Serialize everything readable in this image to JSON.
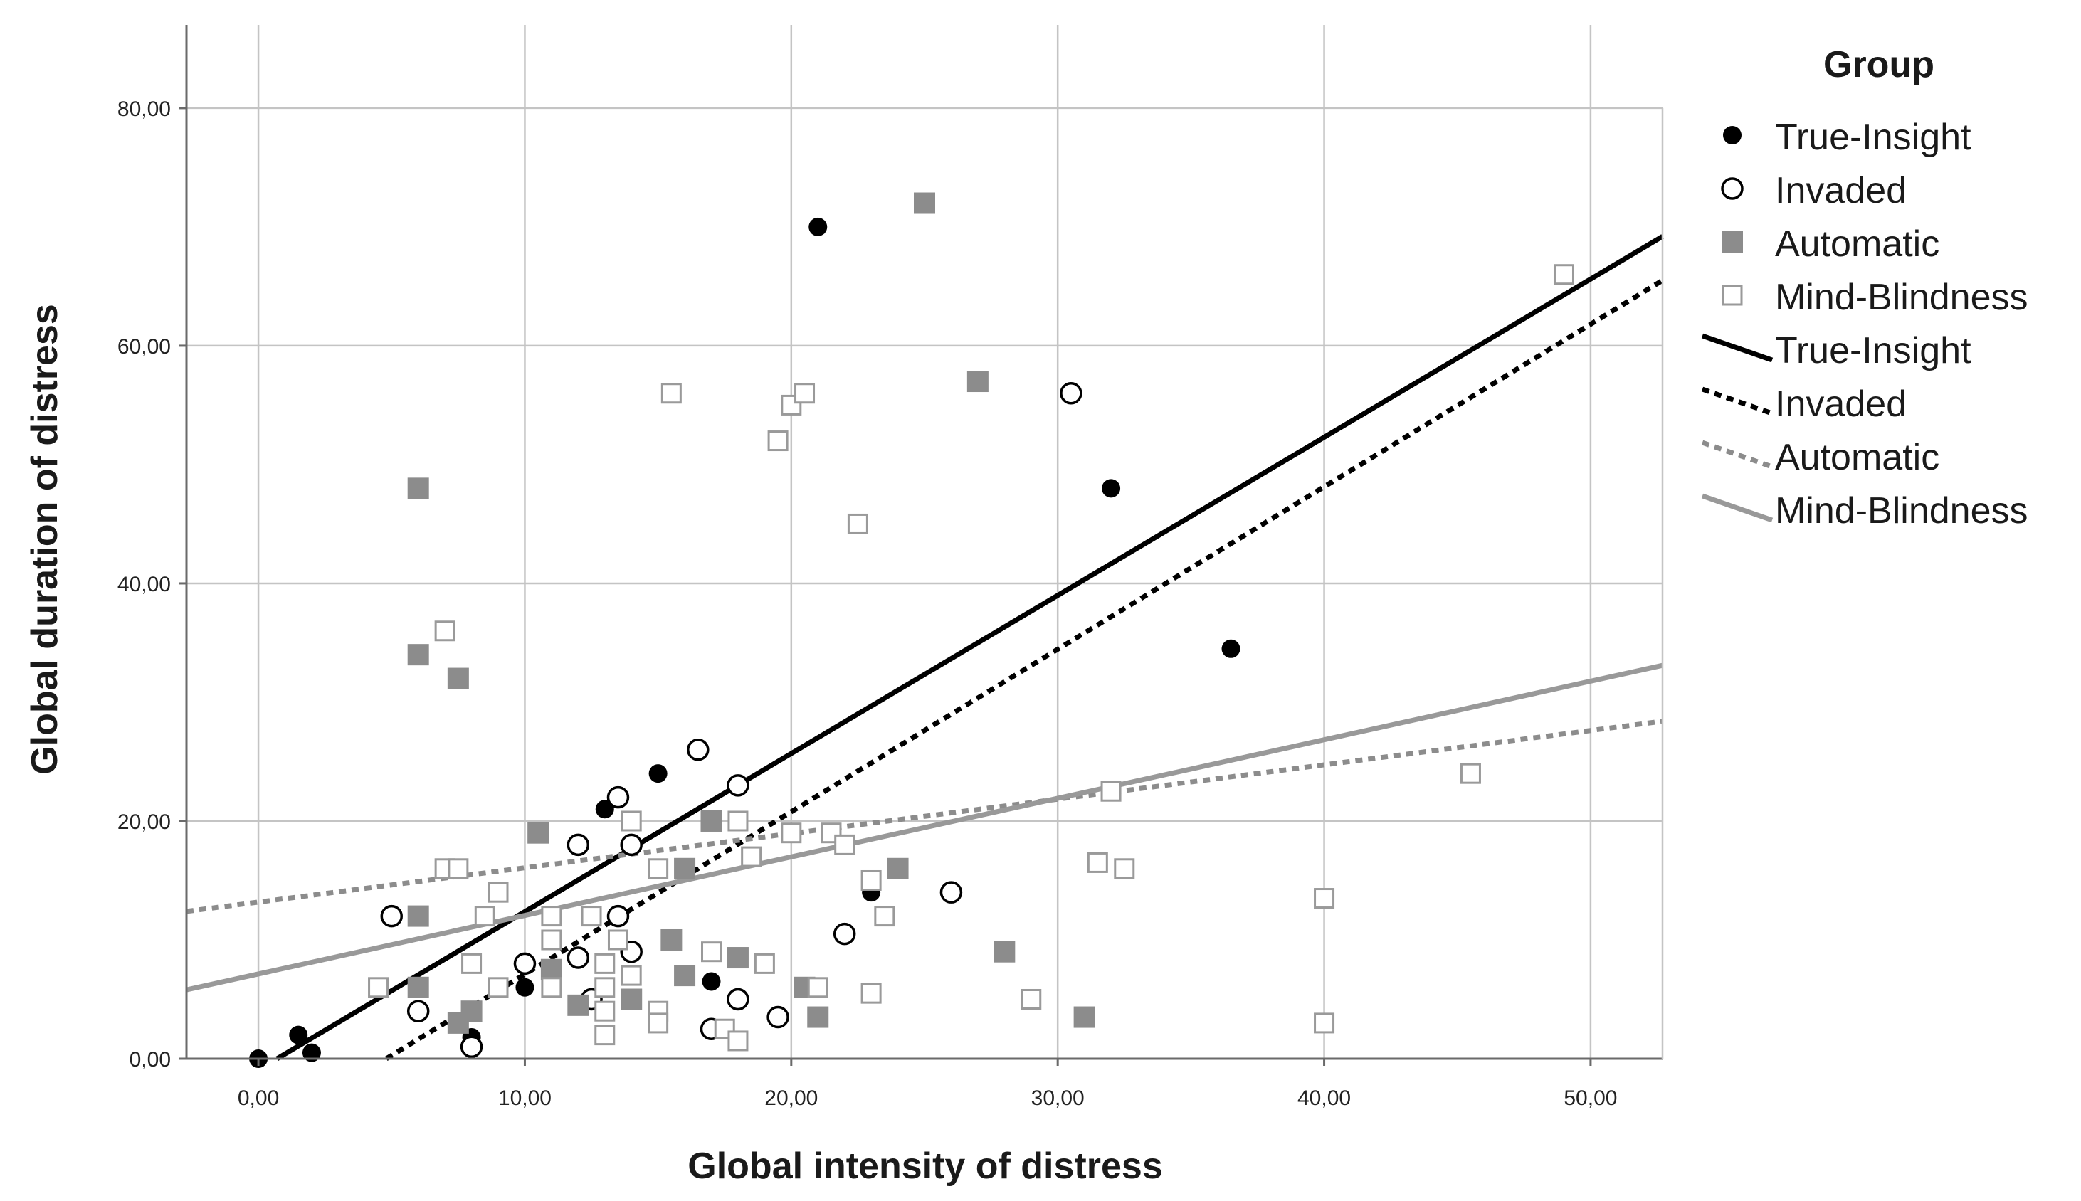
{
  "chart_data": {
    "type": "scatter",
    "xlabel": "Global intensity of distress",
    "ylabel": "Global duration of distress",
    "xlim": [
      -2.7,
      52.7
    ],
    "ylim": [
      0,
      87
    ],
    "x_ticks": [
      0,
      10,
      20,
      30,
      40,
      50
    ],
    "x_tick_labels": [
      "0,00",
      "10,00",
      "20,00",
      "30,00",
      "40,00",
      "50,00"
    ],
    "y_ticks": [
      0,
      20,
      40,
      60,
      80
    ],
    "y_tick_labels": [
      "0,00",
      "20,00",
      "40,00",
      "60,00",
      "80,00"
    ],
    "grid": true,
    "legend_title": "Group",
    "legend_position": "right",
    "series": [
      {
        "name": "True-Insight",
        "marker": "filled-circle",
        "color": "#000000",
        "points": [
          [
            0,
            0
          ],
          [
            1.5,
            2
          ],
          [
            2,
            0.5
          ],
          [
            8,
            1.8
          ],
          [
            10,
            6
          ],
          [
            13,
            21
          ],
          [
            15,
            24
          ],
          [
            17,
            6.5
          ],
          [
            21,
            70
          ],
          [
            23,
            14
          ],
          [
            32,
            48
          ],
          [
            36.5,
            34.5
          ]
        ]
      },
      {
        "name": "Invaded",
        "marker": "open-circle",
        "color": "#000000",
        "points": [
          [
            5,
            12
          ],
          [
            6,
            4
          ],
          [
            8,
            1
          ],
          [
            10,
            8
          ],
          [
            12,
            18
          ],
          [
            12,
            8.5
          ],
          [
            12.5,
            5
          ],
          [
            13.5,
            22
          ],
          [
            13.5,
            12
          ],
          [
            14,
            18
          ],
          [
            14,
            9
          ],
          [
            16.5,
            26
          ],
          [
            17,
            2.5
          ],
          [
            18,
            23
          ],
          [
            18,
            5
          ],
          [
            19.5,
            3.5
          ],
          [
            22,
            10.5
          ],
          [
            26,
            14
          ],
          [
            30.5,
            56
          ]
        ]
      },
      {
        "name": "Automatic",
        "marker": "filled-square",
        "color": "#8c8c8c",
        "points": [
          [
            6,
            48
          ],
          [
            6,
            34
          ],
          [
            7.5,
            32
          ],
          [
            6,
            12
          ],
          [
            6,
            6
          ],
          [
            7.5,
            3
          ],
          [
            8,
            4
          ],
          [
            10.5,
            19
          ],
          [
            11,
            7.5
          ],
          [
            12,
            4.5
          ],
          [
            14,
            5
          ],
          [
            15.5,
            10
          ],
          [
            16,
            16
          ],
          [
            16,
            7
          ],
          [
            17,
            20
          ],
          [
            18,
            8.5
          ],
          [
            20.5,
            6
          ],
          [
            21,
            3.5
          ],
          [
            24,
            16
          ],
          [
            25,
            72
          ],
          [
            27,
            57
          ],
          [
            28,
            9
          ],
          [
            31,
            3.5
          ]
        ]
      },
      {
        "name": "Mind-Blindness",
        "marker": "open-square",
        "color": "#9a9a9a",
        "points": [
          [
            4.5,
            6
          ],
          [
            7,
            36
          ],
          [
            7,
            16
          ],
          [
            7.5,
            16
          ],
          [
            8,
            8
          ],
          [
            8.5,
            12
          ],
          [
            9,
            14
          ],
          [
            9,
            6
          ],
          [
            11,
            12
          ],
          [
            11,
            10
          ],
          [
            11,
            6
          ],
          [
            12.5,
            12
          ],
          [
            13,
            8
          ],
          [
            13,
            6
          ],
          [
            13,
            4
          ],
          [
            13,
            2
          ],
          [
            13.5,
            10
          ],
          [
            14,
            20
          ],
          [
            14,
            7
          ],
          [
            15,
            4
          ],
          [
            15,
            3
          ],
          [
            15,
            16
          ],
          [
            15.5,
            56
          ],
          [
            17,
            9
          ],
          [
            17.5,
            2.5
          ],
          [
            18,
            20
          ],
          [
            18,
            1.5
          ],
          [
            18.5,
            17
          ],
          [
            19,
            8
          ],
          [
            19.5,
            52
          ],
          [
            20,
            55
          ],
          [
            20,
            19
          ],
          [
            20.5,
            56
          ],
          [
            21,
            6
          ],
          [
            21.5,
            19
          ],
          [
            22,
            18
          ],
          [
            22.5,
            45
          ],
          [
            23,
            15
          ],
          [
            23,
            5.5
          ],
          [
            23.5,
            12
          ],
          [
            29,
            5
          ],
          [
            31.5,
            16.5
          ],
          [
            32,
            22.5
          ],
          [
            32.5,
            16
          ],
          [
            40,
            13.5
          ],
          [
            40,
            3
          ],
          [
            45.5,
            24
          ],
          [
            49,
            66
          ]
        ]
      }
    ],
    "fit_lines": [
      {
        "name": "True-Insight",
        "style": "solid",
        "color": "#000000",
        "from": [
          0.7,
          0
        ],
        "to": [
          52.7,
          69.2
        ]
      },
      {
        "name": "Invaded",
        "style": "dotted",
        "color": "#000000",
        "from": [
          4.8,
          0
        ],
        "to": [
          52.7,
          65.5
        ]
      },
      {
        "name": "Automatic",
        "style": "dotted",
        "color": "#8c8c8c",
        "from": [
          -2.7,
          12.4
        ],
        "to": [
          52.7,
          28.4
        ]
      },
      {
        "name": "Mind-Blindness",
        "style": "solid",
        "color": "#999999",
        "from": [
          -2.7,
          5.8
        ],
        "to": [
          52.7,
          33.1
        ]
      }
    ],
    "legend": [
      {
        "label": "True-Insight",
        "kind": "marker",
        "marker": "filled-circle",
        "color": "#000000"
      },
      {
        "label": "Invaded",
        "kind": "marker",
        "marker": "open-circle",
        "color": "#000000"
      },
      {
        "label": "Automatic",
        "kind": "marker",
        "marker": "filled-square",
        "color": "#8c8c8c"
      },
      {
        "label": "Mind-Blindness",
        "kind": "marker",
        "marker": "open-square",
        "color": "#9a9a9a"
      },
      {
        "label": "True-Insight",
        "kind": "line",
        "style": "solid",
        "color": "#000000"
      },
      {
        "label": "Invaded",
        "kind": "line",
        "style": "dotted",
        "color": "#000000"
      },
      {
        "label": "Automatic",
        "kind": "line",
        "style": "dotted",
        "color": "#8c8c8c"
      },
      {
        "label": "Mind-Blindness",
        "kind": "line",
        "style": "solid",
        "color": "#999999"
      }
    ]
  }
}
